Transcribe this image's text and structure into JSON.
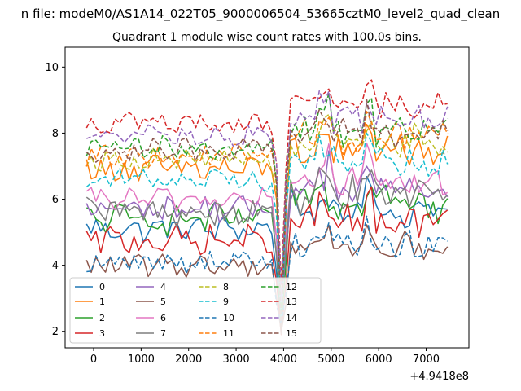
{
  "chart_data": {
    "type": "line",
    "suptitle": "n file: modeM0/AS1A14_022T05_9000006504_53665cztM0_level2_quad_clean",
    "title": "Quadrant 1 module wise count rates with 100.0s bins.",
    "xlabel": "",
    "ylabel": "",
    "x_offset_label": "+4.9418e8",
    "xlim": [
      -600,
      7900
    ],
    "ylim": [
      1.5,
      10.6
    ],
    "xticks": [
      0,
      1000,
      2000,
      3000,
      4000,
      5000,
      6000,
      7000
    ],
    "xtick_labels": [
      "0",
      "1000",
      "2000",
      "3000",
      "4000",
      "5000",
      "6000",
      "7000"
    ],
    "yticks": [
      2,
      4,
      6,
      8,
      10
    ],
    "ytick_labels": [
      "2",
      "4",
      "6",
      "8",
      "10"
    ],
    "x_start": -150,
    "x_step": 100,
    "dip": {
      "x": 3950,
      "values": [
        2.3,
        2.1,
        2.2,
        1.9,
        2.6,
        2.0,
        2.4,
        2.8,
        2.7,
        2.3,
        2.2,
        2.6,
        2.5,
        3.4,
        2.9,
        1.9
      ]
    },
    "legend": {
      "location": "lower-left",
      "ncol": 4
    },
    "series": [
      {
        "name": "0",
        "color": "#1f77b4",
        "dashed": false,
        "base": 5.1,
        "amp": 0.35
      },
      {
        "name": "1",
        "color": "#ff7f0e",
        "dashed": false,
        "base": 6.9,
        "amp": 0.4
      },
      {
        "name": "2",
        "color": "#2ca02c",
        "dashed": false,
        "base": 5.4,
        "amp": 0.4
      },
      {
        "name": "3",
        "color": "#d62728",
        "dashed": false,
        "base": 4.75,
        "amp": 0.4
      },
      {
        "name": "4",
        "color": "#9467bd",
        "dashed": false,
        "base": 5.7,
        "amp": 0.35
      },
      {
        "name": "5",
        "color": "#8c564b",
        "dashed": false,
        "base": 4.0,
        "amp": 0.3
      },
      {
        "name": "6",
        "color": "#e377c2",
        "dashed": false,
        "base": 6.0,
        "amp": 0.3
      },
      {
        "name": "7",
        "color": "#7f7f7f",
        "dashed": false,
        "base": 5.6,
        "amp": 0.4
      },
      {
        "name": "8",
        "color": "#bcbd22",
        "dashed": true,
        "base": 7.2,
        "amp": 0.3
      },
      {
        "name": "9",
        "color": "#17becf",
        "dashed": true,
        "base": 6.6,
        "amp": 0.3
      },
      {
        "name": "10",
        "color": "#1f77b4",
        "dashed": true,
        "base": 4.1,
        "amp": 0.3
      },
      {
        "name": "11",
        "color": "#ff7f0e",
        "dashed": true,
        "base": 7.3,
        "amp": 0.3
      },
      {
        "name": "12",
        "color": "#2ca02c",
        "dashed": true,
        "base": 7.55,
        "amp": 0.3
      },
      {
        "name": "13",
        "color": "#d62728",
        "dashed": true,
        "base": 8.3,
        "amp": 0.3
      },
      {
        "name": "14",
        "color": "#9467bd",
        "dashed": true,
        "base": 7.9,
        "amp": 0.3
      },
      {
        "name": "15",
        "color": "#8c564b",
        "dashed": true,
        "base": 7.5,
        "amp": 0.3
      }
    ]
  }
}
